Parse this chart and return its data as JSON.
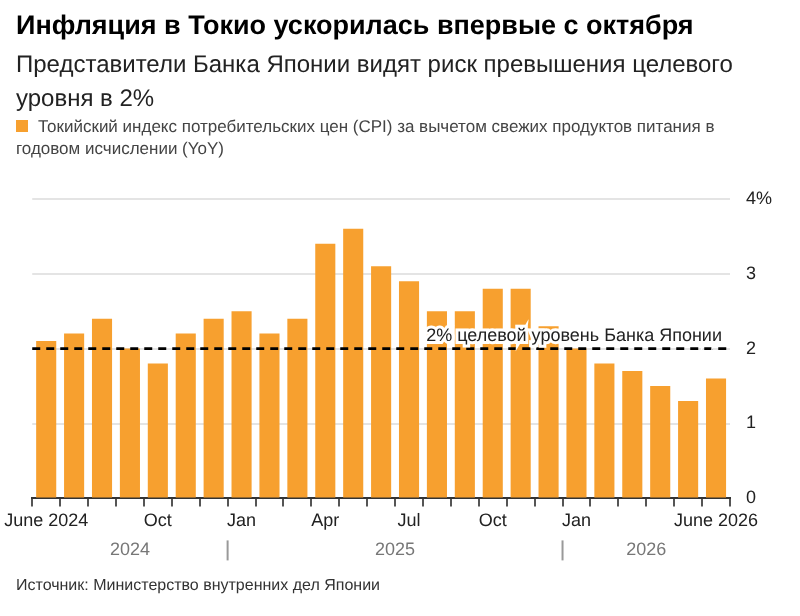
{
  "chart_data": {
    "type": "bar",
    "title": "Инфляция в Токио ускорилась впервые с октября",
    "subtitle": "Представители Банка Японии видят риск превышения целевого уровня в 2%",
    "categories": [
      "June 2024",
      null,
      null,
      null,
      "Oct",
      null,
      null,
      "Jan",
      null,
      null,
      "Apr",
      null,
      null,
      "Jul",
      null,
      null,
      "Oct",
      null,
      null,
      "Jan",
      null,
      null,
      null,
      null,
      "June 2026"
    ],
    "series": [
      {
        "name": "Токийский индекс потребительских цен (CPI) за вычетом свежих продуктов питания в годовом исчислении (YoY)",
        "color": "#f7a02f",
        "values": [
          2.1,
          2.2,
          2.4,
          2.0,
          1.8,
          2.2,
          2.4,
          2.5,
          2.2,
          2.4,
          3.4,
          3.6,
          3.1,
          2.9,
          2.5,
          2.5,
          2.8,
          2.8,
          2.3,
          2.0,
          1.8,
          1.7,
          1.5,
          1.3,
          1.6
        ]
      }
    ],
    "ylim": [
      0,
      4
    ],
    "yticks": [
      0,
      1,
      2,
      3,
      {
        "value": 4,
        "label": "4%"
      }
    ],
    "grid": "y",
    "legend": "top left",
    "ref_lines": [
      {
        "axis": "y",
        "value": 2,
        "label": "2% целевой уровень Банка Японии",
        "color": "#000000",
        "line_style": "dashed"
      }
    ],
    "annotations": [
      "2024",
      "2025",
      "2026",
      "Источник: Министерство внутренних дел Японии"
    ]
  }
}
